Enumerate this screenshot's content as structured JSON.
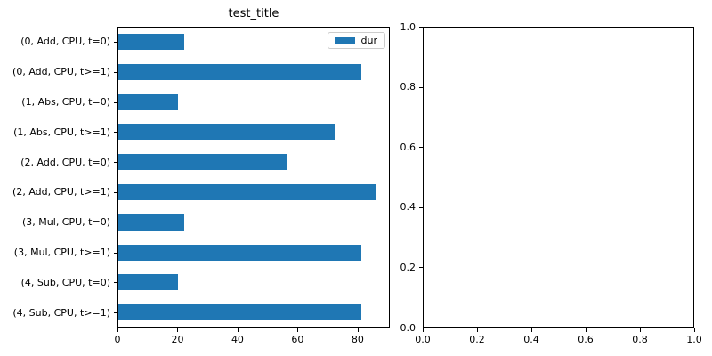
{
  "figure": {
    "background": "#ffffff",
    "text_color": "#000000",
    "accent_color": "#1f77b4"
  },
  "chart_data": [
    {
      "type": "bar",
      "orientation": "horizontal",
      "title": "test_title",
      "xlabel": "",
      "ylabel": "",
      "categories": [
        "(0, Add, CPU, t=0)",
        "(0, Add, CPU, t>=1)",
        "(1, Abs, CPU, t=0)",
        "(1, Abs, CPU, t>=1)",
        "(2, Add, CPU, t=0)",
        "(2, Add, CPU, t>=1)",
        "(3, Mul, CPU, t=0)",
        "(3, Mul, CPU, t>=1)",
        "(4, Sub, CPU, t=0)",
        "(4, Sub, CPU, t>=1)"
      ],
      "series": [
        {
          "name": "dur",
          "color": "#1f77b4",
          "values": [
            22,
            81,
            20,
            72,
            56,
            86,
            22,
            81,
            20,
            81
          ]
        }
      ],
      "xlim": [
        0,
        90.7
      ],
      "xticks": [
        0,
        20,
        40,
        60,
        80
      ],
      "xtick_labels": [
        "0",
        "20",
        "40",
        "60",
        "80"
      ],
      "legend": {
        "position": "upper-right",
        "entries": [
          "dur"
        ],
        "border_color": "#cccccc"
      },
      "grid": false
    },
    {
      "type": "empty",
      "title": "",
      "xlim": [
        0,
        1
      ],
      "ylim": [
        0,
        1
      ],
      "xticks": [
        0,
        0.2,
        0.4,
        0.6,
        0.8,
        1
      ],
      "xtick_labels": [
        "0.0",
        "0.2",
        "0.4",
        "0.6",
        "0.8",
        "1.0"
      ],
      "yticks": [
        0,
        0.2,
        0.4,
        0.6,
        0.8,
        1
      ],
      "ytick_labels": [
        "0.0",
        "0.2",
        "0.4",
        "0.6",
        "0.8",
        "1.0"
      ],
      "grid": false
    }
  ]
}
